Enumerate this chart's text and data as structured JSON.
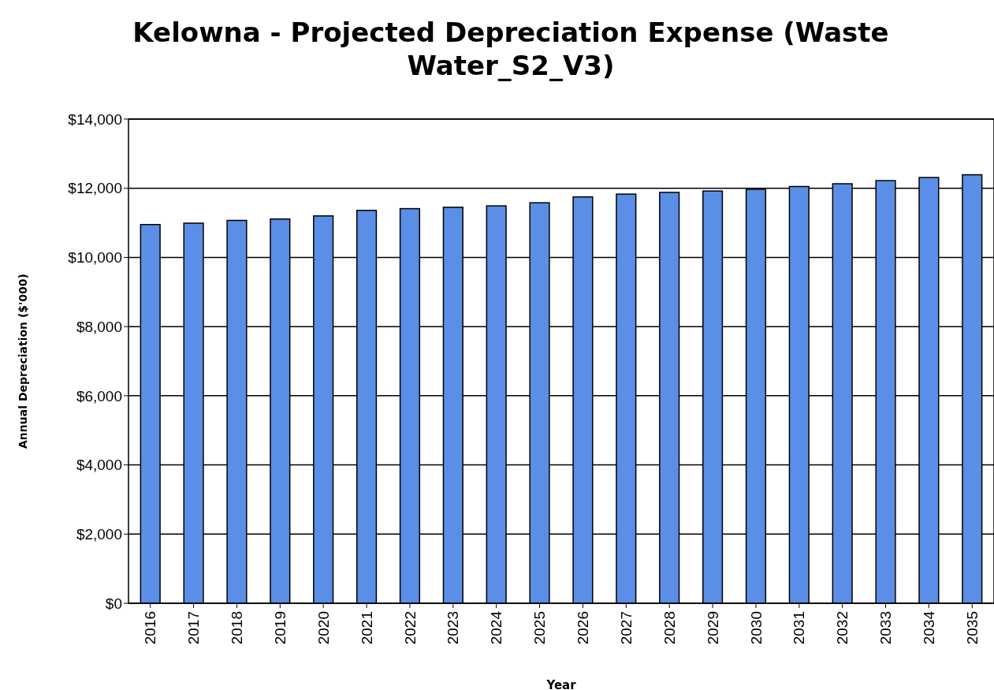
{
  "chart_data": {
    "type": "bar",
    "title": "Kelowna - Projected Depreciation Expense (Waste Water_S2_V3)",
    "xlabel": "Year",
    "ylabel": "Annual Depreciation ($'000)",
    "categories": [
      "2016",
      "2017",
      "2018",
      "2019",
      "2020",
      "2021",
      "2022",
      "2023",
      "2024",
      "2025",
      "2026",
      "2027",
      "2028",
      "2029",
      "2030",
      "2031",
      "2032",
      "2033",
      "2034",
      "2035"
    ],
    "values": [
      10950,
      10990,
      11070,
      11110,
      11200,
      11360,
      11410,
      11450,
      11490,
      11580,
      11750,
      11830,
      11880,
      11920,
      11970,
      12050,
      12130,
      12220,
      12310,
      12390
    ],
    "color": "#5b8ee6",
    "ylim": [
      0,
      14000
    ],
    "yticks": [
      {
        "value": 0,
        "label": "$0"
      },
      {
        "value": 2000,
        "label": "$2,000"
      },
      {
        "value": 4000,
        "label": "$4,000"
      },
      {
        "value": 6000,
        "label": "$6,000"
      },
      {
        "value": 8000,
        "label": "$8,000"
      },
      {
        "value": 10000,
        "label": "$10,000"
      },
      {
        "value": 12000,
        "label": "$12,000"
      },
      {
        "value": 14000,
        "label": "$14,000"
      }
    ],
    "grid": "y"
  }
}
